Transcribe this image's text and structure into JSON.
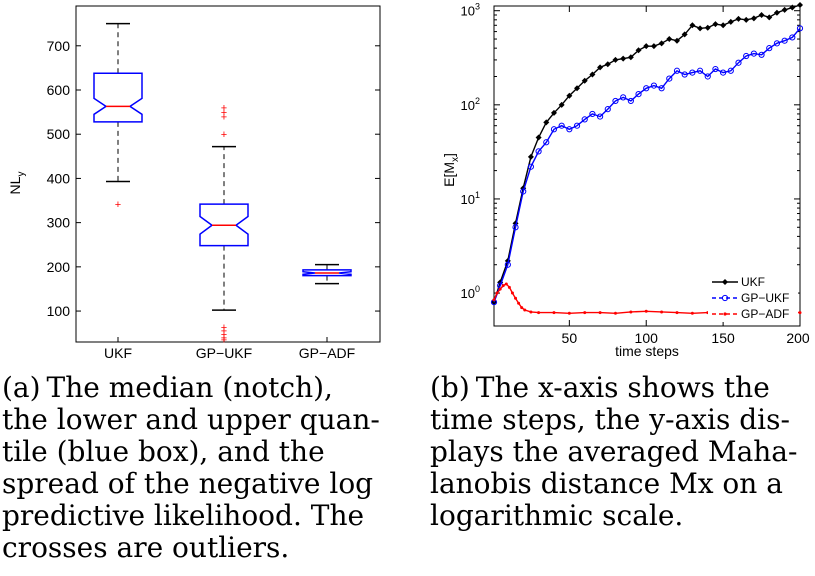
{
  "chart_data": [
    {
      "type": "boxplot",
      "ylabel": "NL",
      "ylabel_sub": "y",
      "ylim": [
        30,
        790
      ],
      "yticks": [
        100,
        200,
        300,
        400,
        500,
        600,
        700
      ],
      "categories": [
        "UKF",
        "GP−UKF",
        "GP−ADF"
      ],
      "boxes": [
        {
          "name": "UKF",
          "whisker_low": 393,
          "q1": 528,
          "median": 563,
          "q3": 638,
          "whisker_high": 750,
          "notch_low": 545,
          "notch_high": 581,
          "outliers": [
            342
          ]
        },
        {
          "name": "GP−UKF",
          "whisker_low": 102,
          "q1": 248,
          "median": 294,
          "q3": 342,
          "whisker_high": 472,
          "notch_low": 274,
          "notch_high": 314,
          "outliers": [
            560,
            550,
            540,
            500,
            64,
            56,
            48,
            40,
            36
          ]
        },
        {
          "name": "GP−ADF",
          "whisker_low": 162,
          "q1": 180,
          "median": 186,
          "q3": 193,
          "whisker_high": 205,
          "notch_low": 183,
          "notch_high": 189,
          "outliers": []
        }
      ]
    },
    {
      "type": "line",
      "yscale": "log",
      "xlabel": "time steps",
      "ylabel": "E[M",
      "ylabel_sub": "x",
      "ylabel_end": "]",
      "xlim": [
        1,
        200
      ],
      "ylim_log10": [
        -0.35,
        3.05
      ],
      "xticks": [
        50,
        100,
        150,
        200
      ],
      "yticks": [
        {
          "base": "10",
          "exp": "0",
          "log": 0
        },
        {
          "base": "10",
          "exp": "1",
          "log": 1
        },
        {
          "base": "10",
          "exp": "2",
          "log": 2
        },
        {
          "base": "10",
          "exp": "3",
          "log": 3
        }
      ],
      "series": [
        {
          "name": "UKF",
          "color": "#000000",
          "marker": "diamond",
          "x": [
            1,
            5,
            10,
            15,
            20,
            25,
            30,
            35,
            40,
            45,
            50,
            55,
            60,
            65,
            70,
            75,
            80,
            85,
            90,
            95,
            100,
            105,
            110,
            115,
            120,
            125,
            130,
            135,
            140,
            145,
            150,
            155,
            160,
            165,
            170,
            175,
            180,
            185,
            190,
            195,
            200
          ],
          "y": [
            0.8,
            1.3,
            2.2,
            5.5,
            13,
            28,
            45,
            65,
            82,
            100,
            125,
            150,
            180,
            210,
            250,
            270,
            300,
            310,
            320,
            380,
            420,
            420,
            450,
            500,
            480,
            560,
            700,
            650,
            660,
            720,
            700,
            760,
            820,
            800,
            830,
            900,
            850,
            950,
            1020,
            1080,
            1150
          ]
        },
        {
          "name": "GP−UKF",
          "color": "#0000ff",
          "marker": "circle",
          "x": [
            1,
            5,
            10,
            15,
            20,
            25,
            30,
            35,
            40,
            45,
            50,
            55,
            60,
            65,
            70,
            75,
            80,
            85,
            90,
            95,
            100,
            105,
            110,
            115,
            120,
            125,
            130,
            135,
            140,
            145,
            150,
            155,
            160,
            165,
            170,
            175,
            180,
            185,
            190,
            195,
            200
          ],
          "y": [
            0.8,
            1.2,
            2.0,
            5.0,
            12,
            22,
            32,
            40,
            55,
            60,
            55,
            60,
            70,
            80,
            75,
            90,
            110,
            120,
            110,
            130,
            150,
            160,
            150,
            190,
            230,
            210,
            220,
            230,
            200,
            240,
            220,
            230,
            280,
            330,
            350,
            340,
            400,
            450,
            480,
            520,
            650
          ]
        },
        {
          "name": "GP−ADF",
          "color": "#ff0000",
          "marker": "star",
          "x": [
            1,
            3,
            5,
            7,
            9,
            11,
            13,
            15,
            17,
            19,
            21,
            25,
            30,
            40,
            50,
            60,
            70,
            80,
            90,
            100,
            110,
            120,
            130,
            140,
            150,
            160,
            170,
            180,
            190,
            200
          ],
          "y": [
            0.85,
            1.0,
            1.1,
            1.2,
            1.25,
            1.15,
            1.0,
            0.88,
            0.78,
            0.7,
            0.66,
            0.63,
            0.62,
            0.62,
            0.61,
            0.62,
            0.62,
            0.61,
            0.63,
            0.64,
            0.63,
            0.62,
            0.61,
            0.62,
            0.62,
            0.63,
            0.64,
            0.65,
            0.63,
            0.62
          ]
        }
      ],
      "legend_position": "bottom-right"
    }
  ],
  "captions": {
    "a": {
      "label": "(a)",
      "lines": [
        "The median (notch),",
        "the lower and upper quan-",
        "tile (blue box), and the",
        "spread of the negative log",
        "predictive likelihood. The",
        "crosses are outliers."
      ]
    },
    "b": {
      "label": "(b)",
      "lines": [
        "The x-axis shows the",
        "time steps, the y-axis dis-",
        "plays the averaged Maha-",
        "lanobis distance Mx on a",
        "logarithmic scale."
      ]
    }
  }
}
